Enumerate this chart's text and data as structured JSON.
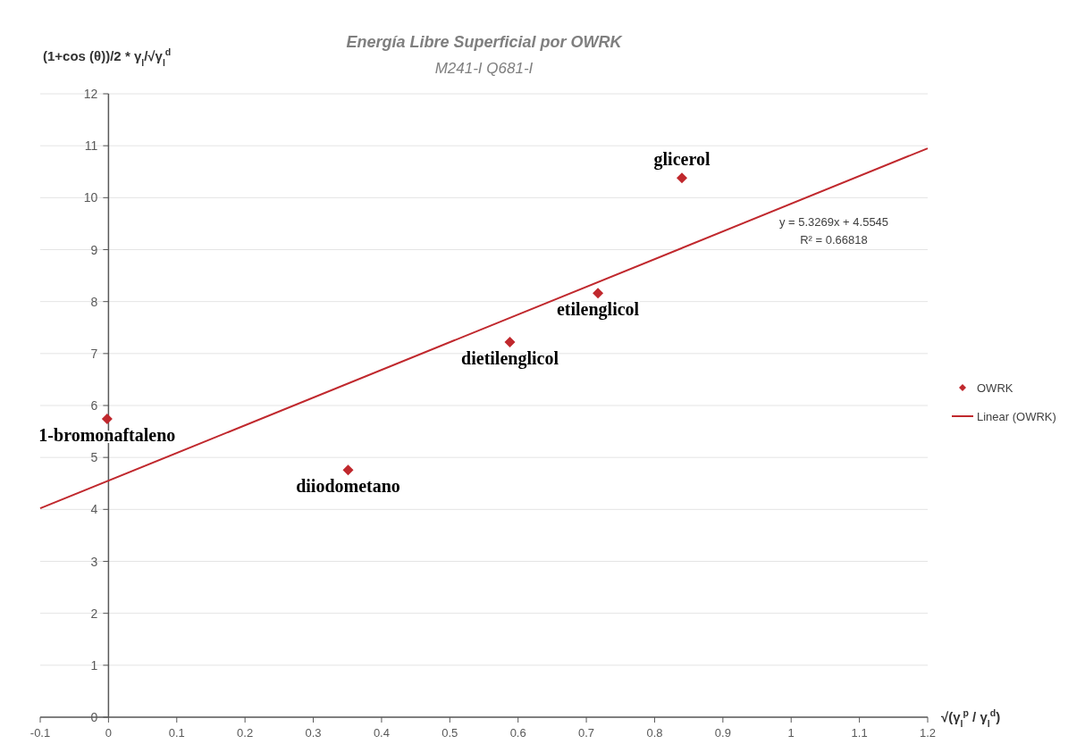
{
  "chart_data": {
    "type": "scatter",
    "title": "Energía Libre Superficial por OWRK",
    "subtitle": "M241-I  Q681-I",
    "xlabel": "√(γ$_{l}$$^{p}$ / γ$_{l}$$^{d}$)",
    "ylabel": "(1+cos (θ))/2 * γ$_{l}$/√γ$_{l}$$^{d}$",
    "series": [
      {
        "name": "OWRK",
        "marker": "diamond",
        "color": "#c0282d",
        "x": [
          -0.002,
          0.351,
          0.588,
          0.717,
          0.84
        ],
        "values": [
          5.74,
          4.76,
          7.22,
          8.16,
          10.38
        ]
      },
      {
        "name": "Linear (OWRK)",
        "type": "line",
        "color": "#c0282d",
        "x": [
          -0.1,
          1.2
        ],
        "values": [
          4.02,
          10.95
        ]
      }
    ],
    "xlim": [
      -0.1,
      1.2
    ],
    "xticks": [
      -0.1,
      0,
      0.1,
      0.2,
      0.3,
      0.4,
      0.5,
      0.6,
      0.7,
      0.8,
      0.9,
      1,
      1.1,
      1.2
    ],
    "ylim": [
      0,
      12
    ],
    "yticks": [
      0,
      1,
      2,
      3,
      4,
      5,
      6,
      7,
      8,
      9,
      10,
      11,
      12
    ],
    "grid": "y",
    "legend": "right",
    "annotations": [
      {
        "text": "1-bromonaftaleno",
        "x": -0.002,
        "y": 5.74
      },
      {
        "text": "diiodometano",
        "x": 0.351,
        "y": 4.76
      },
      {
        "text": "dietilenglicol",
        "x": 0.588,
        "y": 7.22
      },
      {
        "text": "etilenglicol",
        "x": 0.717,
        "y": 8.16
      },
      {
        "text": "glicerol",
        "x": 0.84,
        "y": 10.38
      },
      "y = 5.3269x + 4.5545",
      "R² = 0.66818"
    ]
  }
}
